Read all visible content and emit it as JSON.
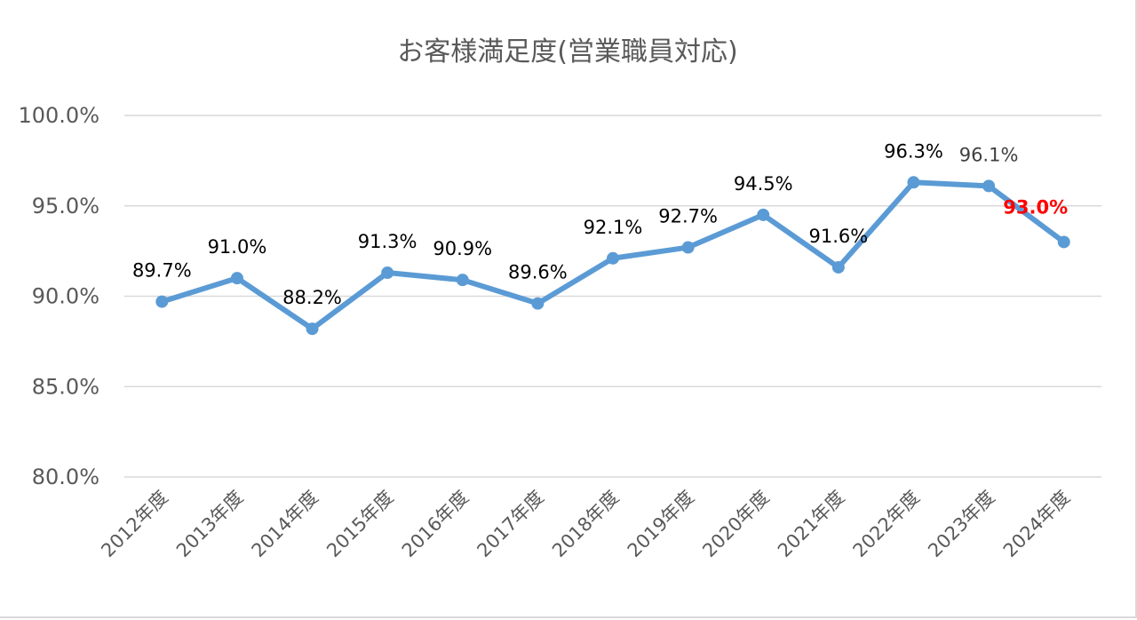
{
  "chart_data": {
    "type": "line",
    "title": "お客様満足度(営業職員対応)",
    "xlabel": "",
    "ylabel": "",
    "categories": [
      "2012年度",
      "2013年度",
      "2014年度",
      "2015年度",
      "2016年度",
      "2017年度",
      "2018年度",
      "2019年度",
      "2020年度",
      "2021年度",
      "2022年度",
      "2023年度",
      "2024年度"
    ],
    "series": [
      {
        "values": [
          89.7,
          91.0,
          88.2,
          91.3,
          90.9,
          89.6,
          92.1,
          92.7,
          94.5,
          91.6,
          96.3,
          96.1,
          93.0
        ],
        "labels": [
          "89.7%",
          "91.0%",
          "88.2%",
          "91.3%",
          "90.9%",
          "89.6%",
          "92.1%",
          "92.7%",
          "94.5%",
          "91.6%",
          "96.3%",
          "96.1%",
          "93.0%"
        ],
        "color": "#5b9bd5"
      }
    ],
    "ylim": [
      80,
      100
    ],
    "yticks": [
      80,
      85,
      90,
      95,
      100
    ],
    "ytick_labels": [
      "80.0%",
      "85.0%",
      "90.0%",
      "95.0%",
      "100.0%"
    ],
    "grid": true,
    "legend": "none",
    "highlight_index": 12,
    "highlight_color": "#ff0000"
  }
}
